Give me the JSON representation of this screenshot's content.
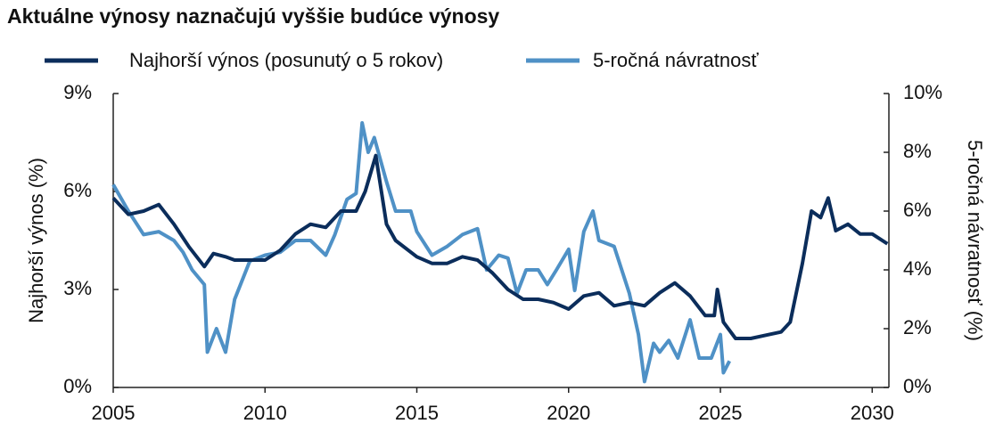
{
  "chart_data": {
    "type": "line",
    "title": "Aktuálne výnosy naznačujú vyššie budúce výnosy",
    "y_label": "Najhorší výnos (%)",
    "y2_label": "5-ročná návratnosť (%)",
    "xlim": [
      2005,
      2030.55
    ],
    "xticks": [
      2005,
      2010,
      2015,
      2020,
      2025,
      2030
    ],
    "ylim": [
      0,
      9
    ],
    "yticks": [
      {
        "value": 0,
        "label": "0%"
      },
      {
        "value": 3,
        "label": "3%"
      },
      {
        "value": 6,
        "label": "6%"
      },
      {
        "value": 9,
        "label": "9%"
      }
    ],
    "y2lim": [
      0,
      10
    ],
    "y2ticks": [
      {
        "value": 0,
        "label": "0%"
      },
      {
        "value": 2,
        "label": "2%"
      },
      {
        "value": 4,
        "label": "4%"
      },
      {
        "value": 6,
        "label": "6%"
      },
      {
        "value": 8,
        "label": "8%"
      },
      {
        "value": 10,
        "label": "10%"
      }
    ],
    "series": [
      {
        "name": "Najhorší výnos (posunutý o 5 rokov)",
        "color": "#0b2d5b",
        "axis": "y",
        "x": [
          2005,
          2005.5,
          2006,
          2006.5,
          2007,
          2007.5,
          2008,
          2008.3,
          2008.7,
          2009,
          2009.5,
          2010,
          2010.5,
          2011,
          2011.5,
          2012,
          2012.5,
          2013,
          2013.3,
          2013.65,
          2014,
          2014.3,
          2015,
          2015.5,
          2016,
          2016.5,
          2017,
          2017.5,
          2018,
          2018.5,
          2019,
          2019.5,
          2020,
          2020.5,
          2021,
          2021.5,
          2022,
          2022.5,
          2023,
          2023.5,
          2024,
          2024.5,
          2024.8,
          2024.9,
          2025.1,
          2025.5,
          2026,
          2026.5,
          2027,
          2027.3,
          2027.7,
          2028,
          2028.3,
          2028.55,
          2028.8,
          2029.2,
          2029.6,
          2030,
          2030.5
        ],
        "values": [
          5.8,
          5.3,
          5.4,
          5.6,
          5.0,
          4.3,
          3.7,
          4.1,
          4.0,
          3.9,
          3.9,
          3.9,
          4.2,
          4.7,
          5.0,
          4.9,
          5.4,
          5.4,
          6.0,
          7.1,
          5.0,
          4.5,
          4.0,
          3.8,
          3.8,
          4.0,
          3.9,
          3.5,
          3.0,
          2.7,
          2.7,
          2.6,
          2.4,
          2.8,
          2.9,
          2.5,
          2.6,
          2.5,
          2.9,
          3.2,
          2.8,
          2.2,
          2.2,
          3.0,
          2.0,
          1.5,
          1.5,
          1.6,
          1.7,
          2.0,
          3.8,
          5.4,
          5.2,
          5.8,
          4.8,
          5.0,
          4.7,
          4.7,
          4.4
        ]
      },
      {
        "name": "5-ročná návratnosť",
        "color": "#4f91c6",
        "axis": "y2",
        "x": [
          2005,
          2005.5,
          2006,
          2006.5,
          2007,
          2007.3,
          2007.6,
          2008,
          2008.1,
          2008.4,
          2008.7,
          2009,
          2009.5,
          2010,
          2010.5,
          2011,
          2011.5,
          2012,
          2012.3,
          2012.7,
          2013,
          2013.2,
          2013.4,
          2013.6,
          2014,
          2014.3,
          2014.8,
          2015,
          2015.5,
          2016,
          2016.5,
          2017,
          2017.3,
          2017.7,
          2018,
          2018.3,
          2018.6,
          2019,
          2019.3,
          2019.6,
          2020,
          2020.2,
          2020.5,
          2020.8,
          2021,
          2021.5,
          2022,
          2022.3,
          2022.5,
          2022.8,
          2023,
          2023.3,
          2023.6,
          2024,
          2024.3,
          2024.7,
          2025,
          2025.1,
          2025.3
        ],
        "values": [
          6.9,
          6.0,
          5.2,
          5.3,
          5.0,
          4.6,
          4.0,
          3.5,
          1.2,
          2.0,
          1.2,
          3.0,
          4.3,
          4.5,
          4.6,
          5.0,
          5.0,
          4.5,
          5.2,
          6.4,
          6.6,
          9.0,
          8.0,
          8.5,
          7.0,
          6.0,
          6.0,
          5.3,
          4.5,
          4.8,
          5.2,
          5.4,
          4.0,
          4.5,
          4.4,
          3.2,
          4.0,
          4.0,
          3.5,
          4.0,
          4.7,
          3.3,
          5.3,
          6.0,
          5.0,
          4.8,
          3.2,
          1.8,
          0.2,
          1.5,
          1.2,
          1.6,
          1.0,
          2.3,
          1.0,
          1.0,
          1.8,
          0.5,
          0.9
        ]
      }
    ]
  }
}
